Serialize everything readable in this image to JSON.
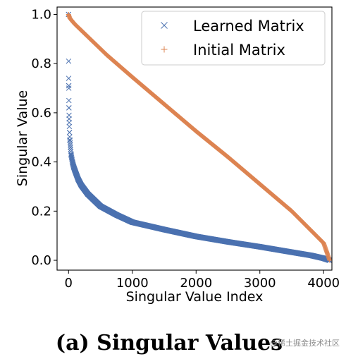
{
  "caption": "(a) Singular Values",
  "watermark": "@稀土掘金技术社区",
  "chart_data": {
    "type": "scatter",
    "xlabel": "Singular Value Index",
    "ylabel": "Singular Value",
    "xlim": [
      -180,
      4130
    ],
    "ylim": [
      -0.04,
      1.03
    ],
    "xticks": [
      0,
      1000,
      2000,
      3000,
      4000
    ],
    "yticks": [
      0.0,
      0.2,
      0.4,
      0.6,
      0.8,
      1.0
    ],
    "grid": false,
    "legend_position": "top-right",
    "n_points": 4096,
    "series": [
      {
        "name": "Learned Matrix",
        "marker": "x",
        "color": "#4c72b0",
        "x": [
          0,
          1,
          2,
          3,
          4,
          5,
          6,
          8,
          10,
          15,
          20,
          30,
          40,
          60,
          80,
          100,
          150,
          200,
          300,
          400,
          500,
          750,
          1000,
          1500,
          2000,
          2500,
          3000,
          3500,
          3800,
          4000,
          4095
        ],
        "values": [
          1.0,
          0.81,
          0.74,
          0.71,
          0.7,
          0.65,
          0.62,
          0.59,
          0.56,
          0.52,
          0.49,
          0.46,
          0.43,
          0.4,
          0.38,
          0.365,
          0.33,
          0.305,
          0.27,
          0.245,
          0.22,
          0.185,
          0.155,
          0.125,
          0.097,
          0.075,
          0.055,
          0.033,
          0.02,
          0.008,
          0.0
        ]
      },
      {
        "name": "Initial Matrix",
        "marker": "+",
        "color": "#dd8452",
        "x": [
          0,
          20,
          50,
          100,
          200,
          400,
          600,
          800,
          1000,
          1500,
          2000,
          2500,
          3000,
          3500,
          4000,
          4095
        ],
        "values": [
          1.0,
          0.985,
          0.975,
          0.96,
          0.935,
          0.885,
          0.835,
          0.79,
          0.745,
          0.635,
          0.525,
          0.42,
          0.31,
          0.2,
          0.07,
          0.0
        ]
      }
    ]
  }
}
